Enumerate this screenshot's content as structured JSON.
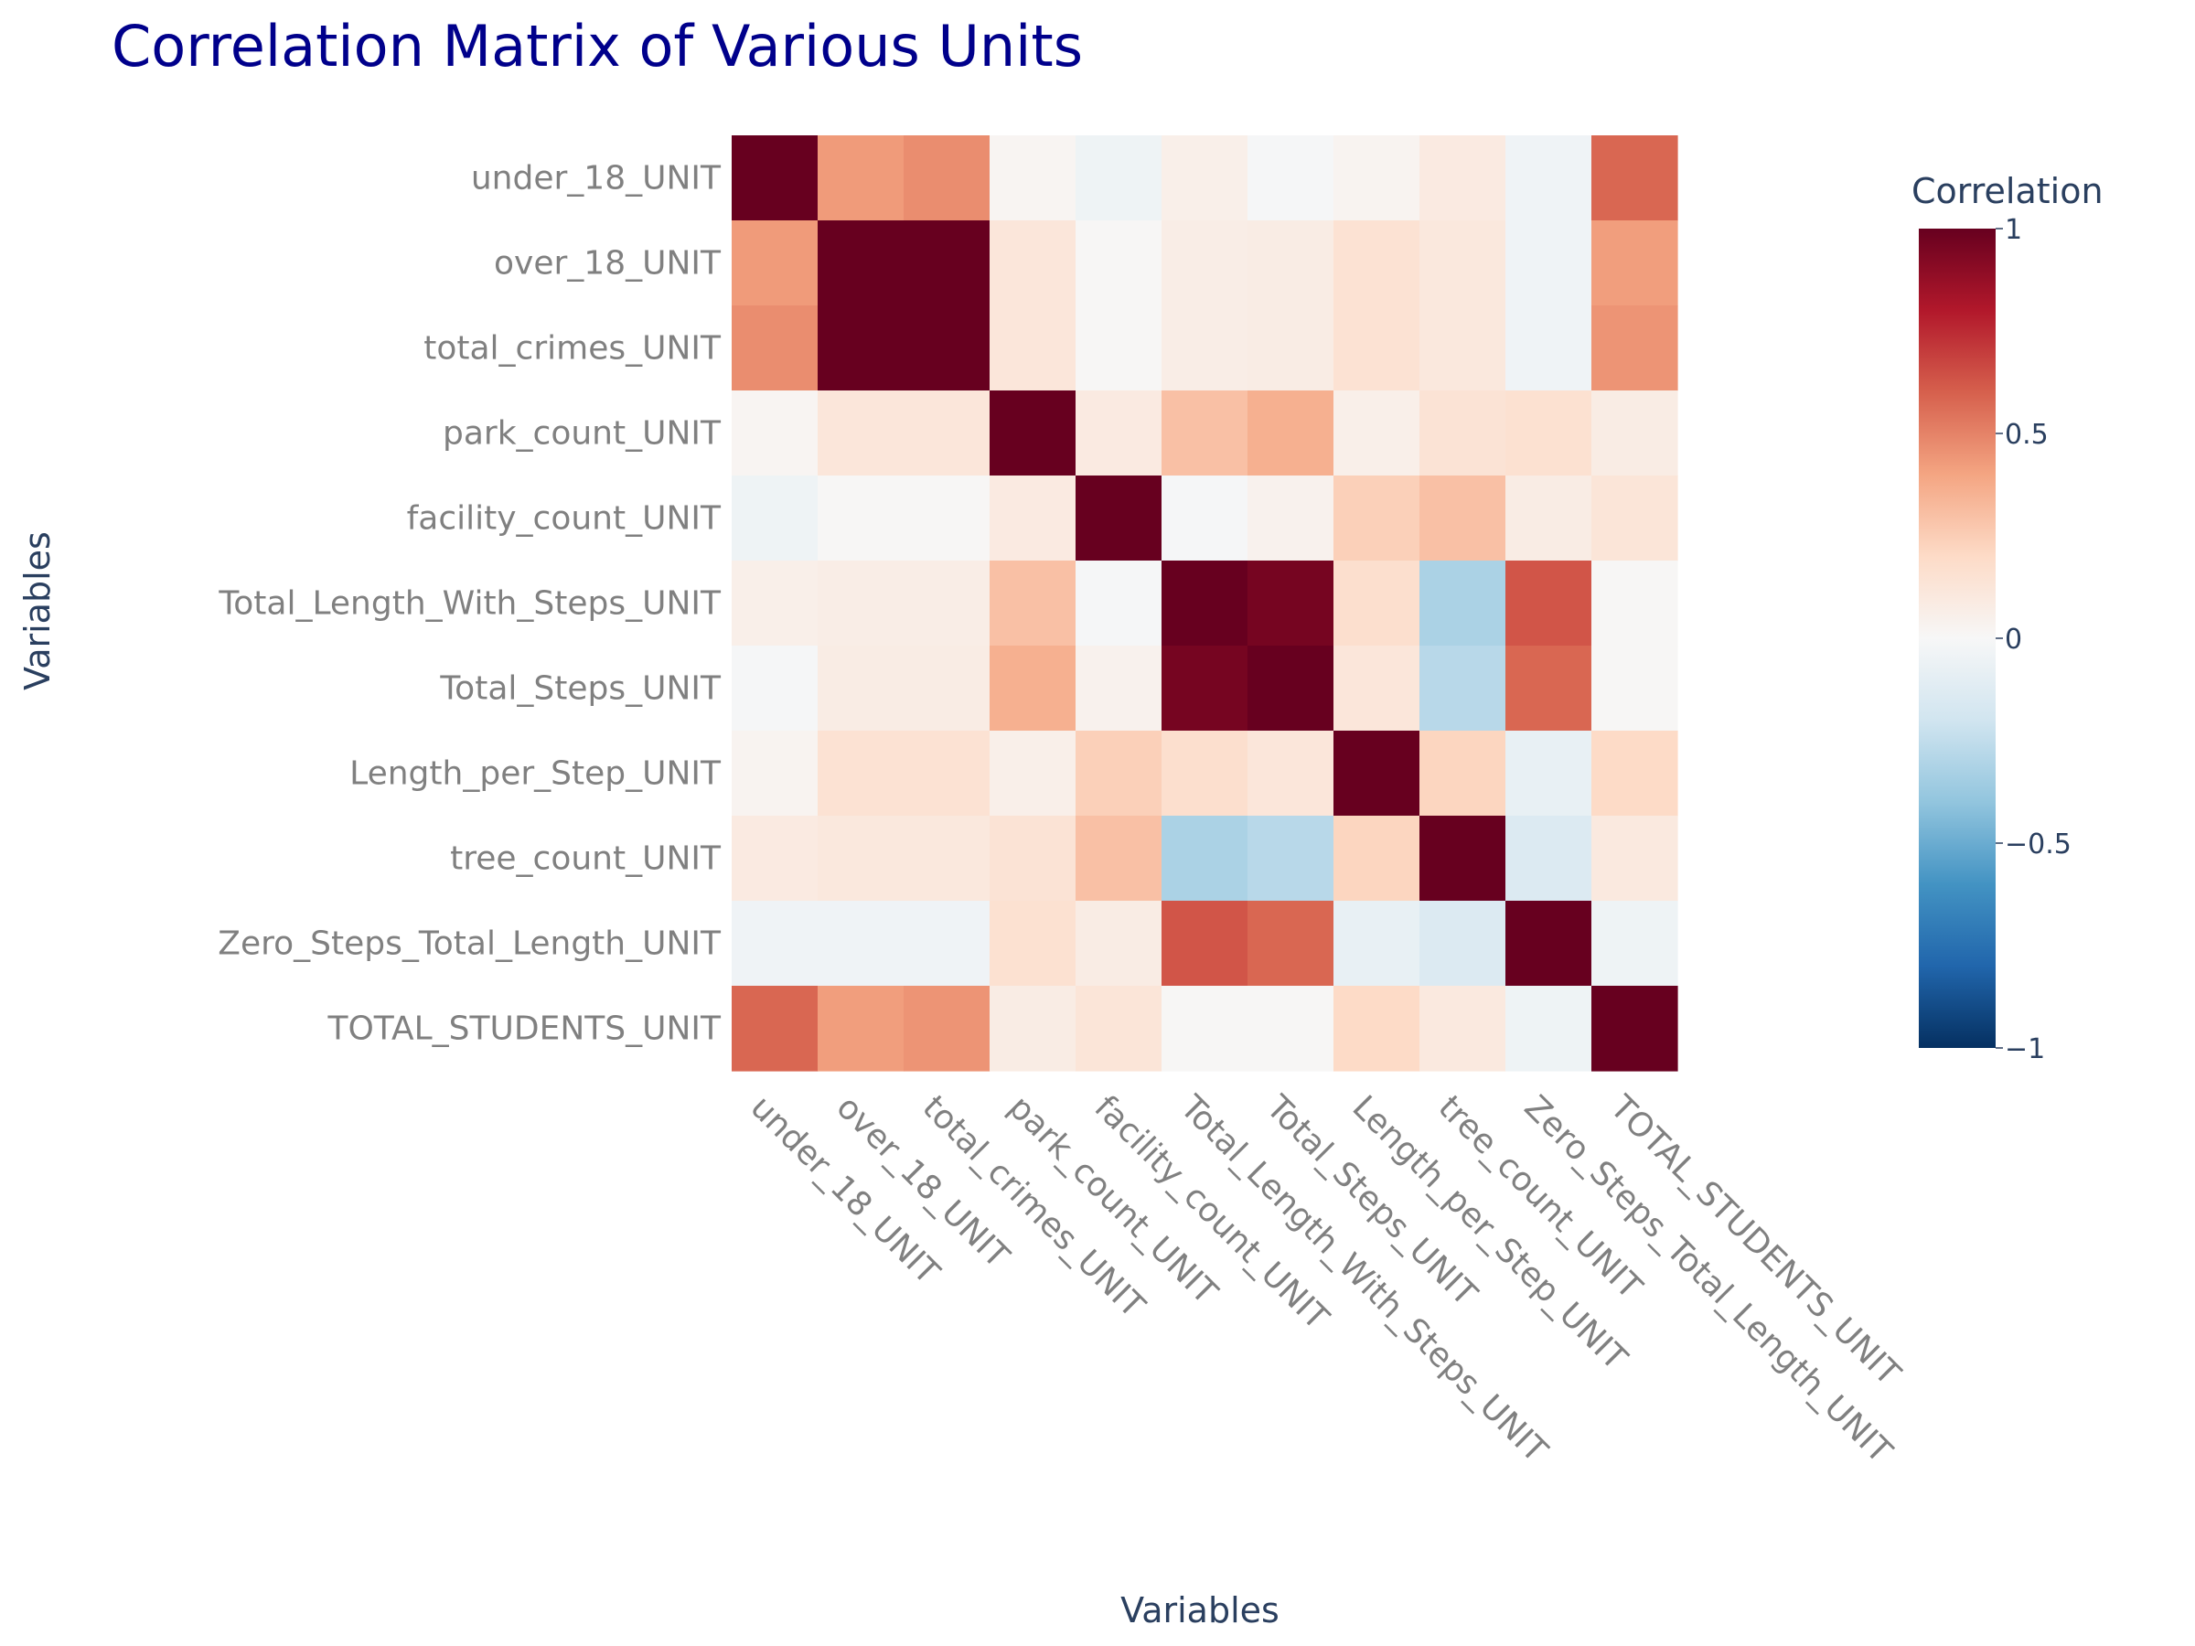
{
  "colors": {
    "title": "#00008B",
    "axis_title": "#2A3F5F",
    "tick": "#808080",
    "colorbar_tick": "#2A3F5F",
    "scale": [
      "#053061",
      "#2166ac",
      "#4393c3",
      "#92c5de",
      "#d1e5f0",
      "#f7f7f7",
      "#fddbc7",
      "#f4a582",
      "#d6604d",
      "#b2182b",
      "#67001f"
    ]
  },
  "chart_data": {
    "type": "heatmap",
    "title": "Correlation Matrix of Various Units",
    "xlabel": "Variables",
    "ylabel": "Variables",
    "colorbar": {
      "title": "Correlation",
      "range": [
        -1,
        1
      ],
      "ticks": [
        "1",
        "0.5",
        "0",
        "−0.5",
        "−1"
      ],
      "tick_values": [
        1,
        0.5,
        0,
        -0.5,
        -1
      ]
    },
    "variables": [
      "under_18_UNIT",
      "over_18_UNIT",
      "total_crimes_UNIT",
      "park_count_UNIT",
      "facility_count_UNIT",
      "Total_Length_With_Steps_UNIT",
      "Total_Steps_UNIT",
      "Length_per_Step_UNIT",
      "tree_count_UNIT",
      "Zero_Steps_Total_Length_UNIT",
      "TOTAL_STUDENTS_UNIT"
    ],
    "matrix": [
      [
        1.0,
        0.43,
        0.47,
        0.02,
        -0.05,
        0.06,
        -0.01,
        0.03,
        0.09,
        -0.04,
        0.58
      ],
      [
        0.43,
        1.0,
        1.0,
        0.12,
        0.01,
        0.07,
        0.08,
        0.15,
        0.11,
        -0.04,
        0.42
      ],
      [
        0.47,
        1.0,
        1.0,
        0.12,
        0.01,
        0.07,
        0.08,
        0.15,
        0.11,
        -0.04,
        0.45
      ],
      [
        0.02,
        0.12,
        0.12,
        1.0,
        0.09,
        0.3,
        0.36,
        0.06,
        0.14,
        0.16,
        0.08
      ],
      [
        -0.05,
        0.01,
        0.01,
        0.09,
        1.0,
        -0.01,
        0.04,
        0.24,
        0.3,
        0.08,
        0.13
      ],
      [
        0.06,
        0.07,
        0.07,
        0.3,
        -0.01,
        1.0,
        0.96,
        0.17,
        -0.32,
        0.63,
        0.01
      ],
      [
        -0.01,
        0.08,
        0.08,
        0.36,
        0.04,
        0.96,
        1.0,
        0.12,
        -0.28,
        0.58,
        0.01
      ],
      [
        0.03,
        0.15,
        0.15,
        0.06,
        0.24,
        0.17,
        0.12,
        1.0,
        0.22,
        -0.08,
        0.2
      ],
      [
        0.09,
        0.11,
        0.11,
        0.14,
        0.3,
        -0.32,
        -0.28,
        0.22,
        1.0,
        -0.14,
        0.1
      ],
      [
        -0.04,
        -0.04,
        -0.04,
        0.16,
        0.08,
        0.63,
        0.58,
        -0.08,
        -0.14,
        1.0,
        -0.05
      ],
      [
        0.58,
        0.42,
        0.45,
        0.08,
        0.13,
        0.01,
        0.01,
        0.2,
        0.1,
        -0.05,
        1.0
      ]
    ]
  }
}
